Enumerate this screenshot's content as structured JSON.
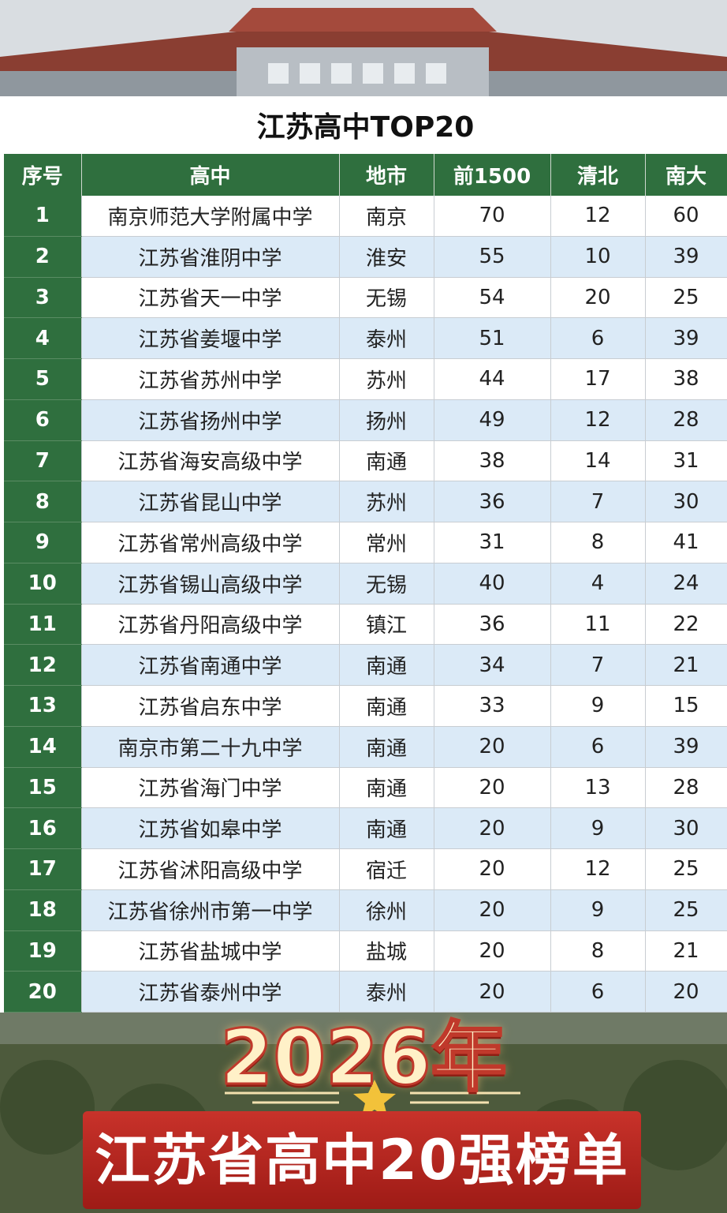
{
  "title": "江苏高中TOP20",
  "table": {
    "columns": [
      "序号",
      "高中",
      "地市",
      "前1500",
      "清北",
      "南大"
    ],
    "rows": [
      [
        1,
        "南京师范大学附属中学",
        "南京",
        70,
        12,
        60
      ],
      [
        2,
        "江苏省淮阴中学",
        "淮安",
        55,
        10,
        39
      ],
      [
        3,
        "江苏省天一中学",
        "无锡",
        54,
        20,
        25
      ],
      [
        4,
        "江苏省姜堰中学",
        "泰州",
        51,
        6,
        39
      ],
      [
        5,
        "江苏省苏州中学",
        "苏州",
        44,
        17,
        38
      ],
      [
        6,
        "江苏省扬州中学",
        "扬州",
        49,
        12,
        28
      ],
      [
        7,
        "江苏省海安高级中学",
        "南通",
        38,
        14,
        31
      ],
      [
        8,
        "江苏省昆山中学",
        "苏州",
        36,
        7,
        30
      ],
      [
        9,
        "江苏省常州高级中学",
        "常州",
        31,
        8,
        41
      ],
      [
        10,
        "江苏省锡山高级中学",
        "无锡",
        40,
        4,
        24
      ],
      [
        11,
        "江苏省丹阳高级中学",
        "镇江",
        36,
        11,
        22
      ],
      [
        12,
        "江苏省南通中学",
        "南通",
        34,
        7,
        21
      ],
      [
        13,
        "江苏省启东中学",
        "南通",
        33,
        9,
        15
      ],
      [
        14,
        "南京市第二十九中学",
        "南通",
        20,
        6,
        39
      ],
      [
        15,
        "江苏省海门中学",
        "南通",
        20,
        13,
        28
      ],
      [
        16,
        "江苏省如皋中学",
        "南通",
        20,
        9,
        30
      ],
      [
        17,
        "江苏省沭阳高级中学",
        "宿迁",
        20,
        12,
        25
      ],
      [
        18,
        "江苏省徐州市第一中学",
        "徐州",
        20,
        9,
        25
      ],
      [
        19,
        "江苏省盐城中学",
        "盐城",
        20,
        8,
        21
      ],
      [
        20,
        "江苏省泰州中学",
        "泰州",
        20,
        6,
        20
      ]
    ]
  },
  "banner": {
    "year": "2026年",
    "text": "江苏省高中20强榜单"
  }
}
